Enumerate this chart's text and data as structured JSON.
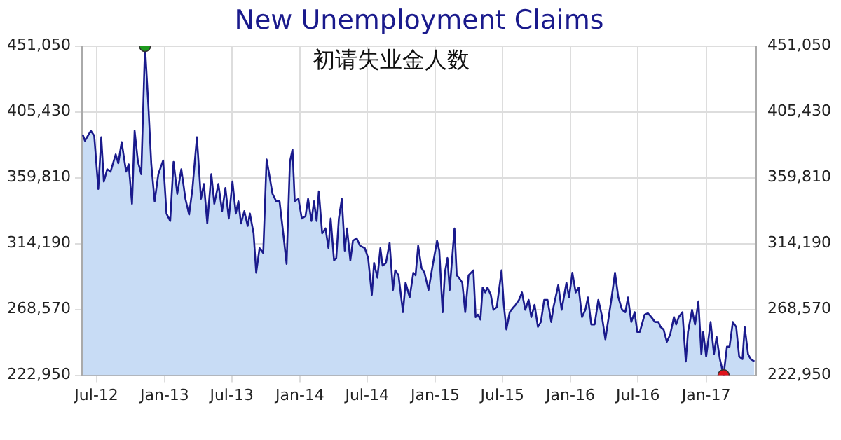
{
  "chart_data": {
    "type": "area",
    "title": "New Unemployment Claims",
    "subtitle": "初请失业金人数",
    "x": [
      "2012-05-25",
      "2012-05-31",
      "2012-06-16",
      "2012-06-25",
      "2012-07-06",
      "2012-07-14",
      "2012-07-21",
      "2012-07-30",
      "2012-08-08",
      "2012-08-22",
      "2012-08-29",
      "2012-09-07",
      "2012-09-19",
      "2012-09-26",
      "2012-10-05",
      "2012-10-12",
      "2012-10-21",
      "2012-10-30",
      "2012-11-09",
      "2012-11-18",
      "2012-11-26",
      "2012-12-05",
      "2012-12-15",
      "2012-12-28",
      "2013-01-06",
      "2013-01-16",
      "2013-01-25",
      "2013-02-04",
      "2013-02-15",
      "2013-02-26",
      "2013-03-08",
      "2013-03-17",
      "2013-03-29",
      "2013-04-09",
      "2013-04-17",
      "2013-04-26",
      "2013-05-07",
      "2013-05-15",
      "2013-05-26",
      "2013-06-05",
      "2013-06-14",
      "2013-06-23",
      "2013-07-03",
      "2013-07-12",
      "2013-07-19",
      "2013-07-26",
      "2013-08-04",
      "2013-08-13",
      "2013-08-19",
      "2013-08-29",
      "2013-09-05",
      "2013-09-14",
      "2013-09-24",
      "2013-10-03",
      "2013-10-10",
      "2013-10-19",
      "2013-10-29",
      "2013-11-07",
      "2013-11-17",
      "2013-11-26",
      "2013-12-05",
      "2013-12-12",
      "2013-12-18",
      "2013-12-28",
      "2014-01-06",
      "2014-01-16",
      "2014-01-23",
      "2014-02-01",
      "2014-02-08",
      "2014-02-15",
      "2014-02-21",
      "2014-03-02",
      "2014-03-11",
      "2014-03-19",
      "2014-03-25",
      "2014-04-03",
      "2014-04-09",
      "2014-04-16",
      "2014-04-24",
      "2014-05-02",
      "2014-05-08",
      "2014-05-17",
      "2014-05-24",
      "2014-06-03",
      "2014-06-12",
      "2014-06-25",
      "2014-07-04",
      "2014-07-14",
      "2014-07-20",
      "2014-07-29",
      "2014-08-06",
      "2014-08-12",
      "2014-08-21",
      "2014-08-31",
      "2014-09-09",
      "2014-09-15",
      "2014-09-24",
      "2014-10-06",
      "2014-10-13",
      "2014-10-24",
      "2014-11-03",
      "2014-11-09",
      "2014-11-16",
      "2014-11-25",
      "2014-12-03",
      "2014-12-14",
      "2014-12-24",
      "2015-01-06",
      "2015-01-12",
      "2015-01-21",
      "2015-01-27",
      "2015-02-03",
      "2015-02-09",
      "2015-02-22",
      "2015-02-28",
      "2015-03-06",
      "2015-03-15",
      "2015-03-23",
      "2015-04-01",
      "2015-04-14",
      "2015-04-20",
      "2015-04-26",
      "2015-05-03",
      "2015-05-09",
      "2015-05-16",
      "2015-05-22",
      "2015-05-31",
      "2015-06-07",
      "2015-06-16",
      "2015-06-29",
      "2015-07-05",
      "2015-07-12",
      "2015-07-21",
      "2015-07-31",
      "2015-08-06",
      "2015-08-15",
      "2015-08-23",
      "2015-09-01",
      "2015-09-10",
      "2015-09-17",
      "2015-09-26",
      "2015-10-05",
      "2015-10-13",
      "2015-10-22",
      "2015-10-31",
      "2015-11-10",
      "2015-11-16",
      "2015-11-29",
      "2015-12-08",
      "2015-12-21",
      "2015-12-28",
      "2016-01-06",
      "2016-01-15",
      "2016-01-23",
      "2016-02-01",
      "2016-02-10",
      "2016-02-17",
      "2016-02-26",
      "2016-03-06",
      "2016-03-16",
      "2016-03-25",
      "2016-04-04",
      "2016-04-13",
      "2016-04-21",
      "2016-04-30",
      "2016-05-09",
      "2016-05-19",
      "2016-05-28",
      "2016-06-04",
      "2016-06-13",
      "2016-06-22",
      "2016-06-29",
      "2016-07-06",
      "2016-07-19",
      "2016-07-28",
      "2016-08-06",
      "2016-08-16",
      "2016-08-25",
      "2016-08-31",
      "2016-09-08",
      "2016-09-17",
      "2016-09-26",
      "2016-10-06",
      "2016-10-12",
      "2016-10-19",
      "2016-10-29",
      "2016-11-07",
      "2016-11-13",
      "2016-11-24",
      "2016-12-02",
      "2016-12-11",
      "2016-12-19",
      "2016-12-24",
      "2017-01-01",
      "2017-01-13",
      "2017-01-22",
      "2017-01-29",
      "2017-02-07",
      "2017-02-17",
      "2017-02-26",
      "2017-03-05",
      "2017-03-14",
      "2017-03-23",
      "2017-03-31",
      "2017-04-09",
      "2017-04-15",
      "2017-04-24",
      "2017-05-01",
      "2017-05-11"
    ],
    "series": [
      {
        "color": "#1a1a8c",
        "marker": "none",
        "values": [
          389580,
          385480,
          392310,
          388900,
          352020,
          387870,
          357140,
          365680,
          363970,
          375920,
          369780,
          384460,
          363970,
          369090,
          341770,
          392310,
          370800,
          362260,
          451050,
          410070,
          369090,
          343480,
          362260,
          371820,
          334940,
          329820,
          370800,
          348600,
          365680,
          345180,
          334260,
          352020,
          387870,
          345180,
          355430,
          328110,
          362260,
          341770,
          355430,
          336650,
          352700,
          331530,
          357140,
          334940,
          343480,
          328110,
          336650,
          326400,
          334940,
          321280,
          293960,
          311040,
          307630,
          372510,
          362260,
          348600,
          343480,
          343480,
          321280,
          300110,
          370800,
          379340,
          343480,
          345180,
          331530,
          333240,
          345180,
          329820,
          343480,
          329820,
          350310,
          321280,
          324700,
          311040,
          331530,
          302500,
          304210,
          331530,
          345180,
          309330,
          324700,
          302500,
          316160,
          317860,
          312740,
          311040,
          304210,
          278600,
          300800,
          290550,
          311040,
          298860,
          300800,
          314710,
          281980,
          295640,
          292220,
          266640,
          287130,
          276890,
          293960,
          292220,
          312740,
          297380,
          293960,
          282010,
          297380,
          316160,
          309330,
          266640,
          293960,
          304210,
          282010,
          324700,
          292220,
          290550,
          287130,
          266640,
          292220,
          295640,
          263230,
          264940,
          261520,
          283720,
          280300,
          283720,
          278600,
          268300,
          270050,
          295640,
          271760,
          254690,
          266640,
          270050,
          271760,
          275180,
          280300,
          268300,
          275180,
          263230,
          271760,
          256400,
          259810,
          275180,
          275180,
          259810,
          270050,
          285420,
          268300,
          287130,
          276890,
          293960,
          280300,
          283720,
          263230,
          268300,
          276890,
          258100,
          258100,
          275180,
          264940,
          247860,
          263230,
          276890,
          293960,
          276890,
          268300,
          266640,
          276890,
          259810,
          266640,
          252980,
          252980,
          264940,
          265960,
          263230,
          259810,
          259810,
          256400,
          254690,
          246150,
          251270,
          263230,
          258100,
          263230,
          266640,
          232490,
          252980,
          268300,
          258100,
          274150,
          237610,
          252980,
          235900,
          259810,
          237610,
          249560,
          234200,
          222950,
          242740,
          242740,
          259810,
          256400,
          235900,
          234200,
          256400,
          237610,
          234200,
          232490
        ]
      },
      {
        "type": "scatter",
        "marker": "circle",
        "x": [
          "2012-11-09",
          "2017-02-17"
        ],
        "values": [
          451050,
          222950
        ],
        "colors": [
          "#1e9a1e",
          "#e0141c"
        ]
      }
    ],
    "xlim": [
      "2012-05-23",
      "2017-05-16"
    ],
    "xticks": [
      {
        "value": "2012-07-01",
        "label": "Jul-12"
      },
      {
        "value": "2013-01-01",
        "label": "Jan-13"
      },
      {
        "value": "2013-07-01",
        "label": "Jul-13"
      },
      {
        "value": "2014-01-01",
        "label": "Jan-14"
      },
      {
        "value": "2014-07-01",
        "label": "Jul-14"
      },
      {
        "value": "2015-01-01",
        "label": "Jan-15"
      },
      {
        "value": "2015-07-01",
        "label": "Jul-15"
      },
      {
        "value": "2016-01-01",
        "label": "Jan-16"
      },
      {
        "value": "2016-07-01",
        "label": "Jul-16"
      },
      {
        "value": "2017-01-01",
        "label": "Jan-17"
      }
    ],
    "ylim": [
      222950,
      451050
    ],
    "yticks": [
      {
        "value": 222950,
        "label": "222,950"
      },
      {
        "value": 268570,
        "label": "268,570"
      },
      {
        "value": 314190,
        "label": "314,190"
      },
      {
        "value": 359810,
        "label": "359,810"
      },
      {
        "value": 405430,
        "label": "405,430"
      },
      {
        "value": 451050,
        "label": "451,050"
      }
    ],
    "y2lim": [
      222950,
      451050
    ],
    "y2ticks": [
      {
        "value": 222950,
        "label": "222,950"
      },
      {
        "value": 268570,
        "label": "268,570"
      },
      {
        "value": 314190,
        "label": "314,190"
      },
      {
        "value": 359810,
        "label": "359,810"
      },
      {
        "value": 405430,
        "label": "405,430"
      },
      {
        "value": 451050,
        "label": "451,050"
      }
    ],
    "grid": true
  }
}
